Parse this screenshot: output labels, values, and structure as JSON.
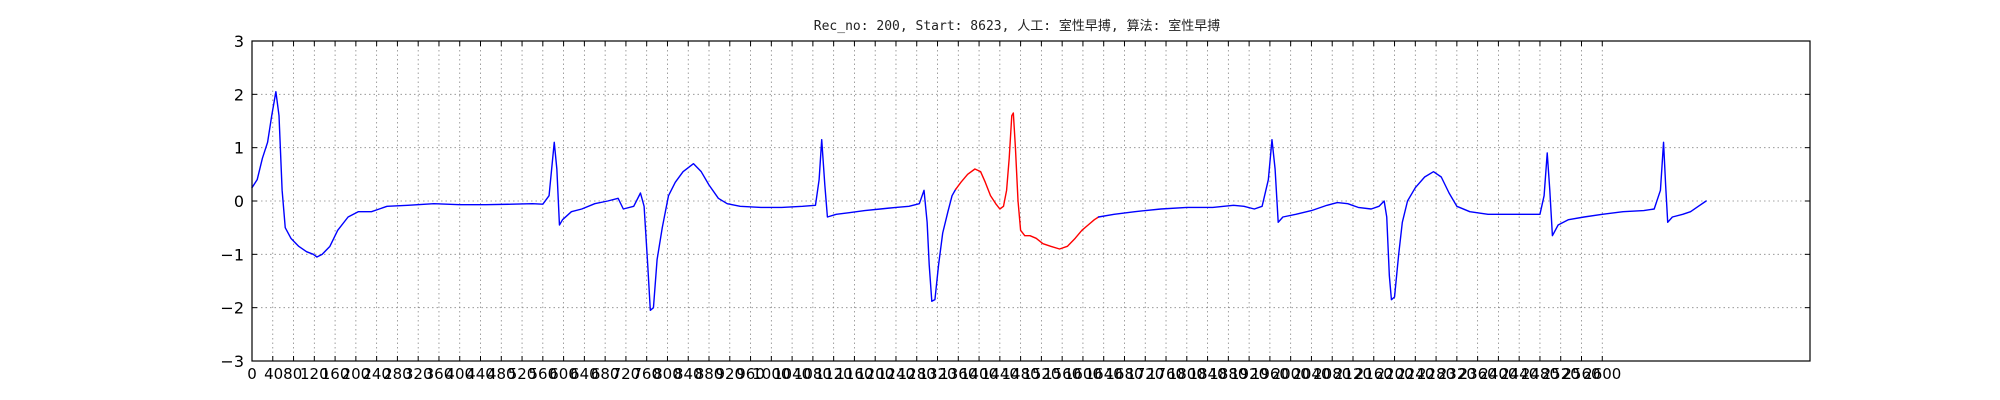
{
  "chart_data": {
    "type": "line",
    "title": "Rec_no: 200, Start: 8623, 人工: 室性早搏, 算法: 室性早搏",
    "xlabel": "",
    "ylabel": "",
    "xlim": [
      0,
      3000
    ],
    "ylim": [
      -3,
      3
    ],
    "grid": true,
    "x_ticks": [
      0,
      40,
      80,
      120,
      160,
      200,
      240,
      280,
      320,
      360,
      400,
      440,
      480,
      520,
      560,
      600,
      640,
      680,
      720,
      760,
      800,
      840,
      880,
      920,
      960,
      1000,
      1040,
      1080,
      1120,
      1160,
      1200,
      1240,
      1280,
      1320,
      1360,
      1400,
      1440,
      1480,
      1520,
      1560,
      1600,
      1640,
      1680,
      1720,
      1760,
      1800,
      1840,
      1880,
      1920,
      1960,
      2000,
      2040,
      2080,
      2120,
      2160,
      2200,
      2240,
      2280,
      2320,
      2360,
      2400,
      2440,
      2480,
      2520,
      2560,
      2600
    ],
    "x_tick_labels_rendered": [
      "0",
      "4080",
      "120",
      "160",
      "200",
      "240",
      "280",
      "320",
      "360",
      "400",
      "440",
      "480",
      "520",
      "560",
      "600",
      "640",
      "680",
      "720",
      "760",
      "800",
      "840",
      "880",
      "920",
      "960",
      "1000",
      "1040",
      "1080",
      "1120",
      "1160",
      "1200",
      "1240",
      "1280",
      "1320",
      "1360",
      "1400",
      "1440",
      "1480",
      "1520",
      "1560",
      "1600",
      "1640",
      "1680",
      "1720",
      "1760",
      "1800",
      "1840",
      "1880",
      "1920",
      "1960",
      "2000",
      "2040",
      "2080",
      "2120",
      "2160",
      "2200",
      "2240",
      "2280",
      "2320",
      "2360",
      "2400",
      "2440",
      "2480",
      "2520",
      "2560",
      "2600"
    ],
    "y_ticks": [
      -3,
      -2,
      -1,
      0,
      1,
      2,
      3
    ],
    "y_tick_labels": [
      "−3",
      "−2",
      "−1",
      "0",
      "1",
      "2",
      "3"
    ],
    "series": [
      {
        "color": "#0000ff",
        "points": [
          [
            0,
            0.25
          ],
          [
            10,
            0.4
          ],
          [
            20,
            0.8
          ],
          [
            30,
            1.1
          ],
          [
            38,
            1.6
          ],
          [
            46,
            2.05
          ],
          [
            52,
            1.6
          ],
          [
            58,
            0.2
          ],
          [
            64,
            -0.5
          ],
          [
            75,
            -0.7
          ],
          [
            90,
            -0.85
          ],
          [
            105,
            -0.95
          ],
          [
            118,
            -1.0
          ],
          [
            125,
            -1.05
          ],
          [
            135,
            -1.0
          ],
          [
            150,
            -0.85
          ],
          [
            165,
            -0.55
          ],
          [
            185,
            -0.3
          ],
          [
            205,
            -0.2
          ],
          [
            230,
            -0.2
          ],
          [
            260,
            -0.1
          ],
          [
            300,
            -0.08
          ],
          [
            350,
            -0.05
          ],
          [
            400,
            -0.07
          ],
          [
            450,
            -0.07
          ],
          [
            500,
            -0.06
          ],
          [
            540,
            -0.05
          ],
          [
            560,
            -0.06
          ],
          [
            572,
            0.1
          ],
          [
            578,
            0.7
          ],
          [
            582,
            1.1
          ],
          [
            587,
            0.6
          ],
          [
            592,
            -0.45
          ],
          [
            598,
            -0.35
          ],
          [
            615,
            -0.2
          ],
          [
            635,
            -0.15
          ],
          [
            660,
            -0.05
          ],
          [
            685,
            0.0
          ],
          [
            705,
            0.05
          ],
          [
            715,
            -0.15
          ],
          [
            735,
            -0.1
          ],
          [
            748,
            0.15
          ],
          [
            755,
            -0.1
          ],
          [
            762,
            -1.2
          ],
          [
            767,
            -2.05
          ],
          [
            773,
            -2.0
          ],
          [
            780,
            -1.1
          ],
          [
            790,
            -0.5
          ],
          [
            802,
            0.1
          ],
          [
            815,
            0.35
          ],
          [
            830,
            0.55
          ],
          [
            850,
            0.7
          ],
          [
            865,
            0.55
          ],
          [
            880,
            0.3
          ],
          [
            898,
            0.05
          ],
          [
            915,
            -0.05
          ],
          [
            940,
            -0.1
          ],
          [
            980,
            -0.12
          ],
          [
            1020,
            -0.12
          ],
          [
            1060,
            -0.1
          ],
          [
            1085,
            -0.08
          ],
          [
            1092,
            0.4
          ],
          [
            1097,
            1.15
          ],
          [
            1103,
            0.3
          ],
          [
            1108,
            -0.3
          ],
          [
            1125,
            -0.25
          ],
          [
            1150,
            -0.22
          ],
          [
            1180,
            -0.18
          ],
          [
            1210,
            -0.15
          ],
          [
            1240,
            -0.12
          ],
          [
            1265,
            -0.1
          ],
          [
            1285,
            -0.05
          ],
          [
            1294,
            0.2
          ],
          [
            1300,
            -0.4
          ],
          [
            1304,
            -1.2
          ],
          [
            1309,
            -1.88
          ],
          [
            1315,
            -1.85
          ],
          [
            1322,
            -1.2
          ],
          [
            1330,
            -0.6
          ],
          [
            1340,
            -0.2
          ],
          [
            1348,
            0.1
          ],
          [
            1355,
            0.22
          ]
        ]
      },
      {
        "color": "#ff0000",
        "points": [
          [
            1355,
            0.22
          ],
          [
            1365,
            0.35
          ],
          [
            1378,
            0.5
          ],
          [
            1392,
            0.6
          ],
          [
            1403,
            0.55
          ],
          [
            1412,
            0.35
          ],
          [
            1422,
            0.1
          ],
          [
            1432,
            -0.05
          ],
          [
            1440,
            -0.15
          ],
          [
            1447,
            -0.1
          ],
          [
            1453,
            0.2
          ],
          [
            1458,
            0.8
          ],
          [
            1463,
            1.6
          ],
          [
            1466,
            1.65
          ],
          [
            1470,
            1.0
          ],
          [
            1475,
            0.0
          ],
          [
            1480,
            -0.55
          ],
          [
            1488,
            -0.65
          ],
          [
            1498,
            -0.65
          ],
          [
            1510,
            -0.7
          ],
          [
            1523,
            -0.8
          ],
          [
            1538,
            -0.85
          ],
          [
            1555,
            -0.9
          ],
          [
            1570,
            -0.85
          ],
          [
            1585,
            -0.7
          ],
          [
            1598,
            -0.55
          ],
          [
            1610,
            -0.45
          ],
          [
            1622,
            -0.35
          ],
          [
            1630,
            -0.3
          ]
        ]
      },
      {
        "color": "#0000ff",
        "points": [
          [
            1630,
            -0.3
          ],
          [
            1660,
            -0.25
          ],
          [
            1700,
            -0.2
          ],
          [
            1750,
            -0.15
          ],
          [
            1800,
            -0.12
          ],
          [
            1850,
            -0.12
          ],
          [
            1890,
            -0.08
          ],
          [
            1910,
            -0.1
          ],
          [
            1930,
            -0.15
          ],
          [
            1945,
            -0.1
          ],
          [
            1957,
            0.4
          ],
          [
            1964,
            1.15
          ],
          [
            1970,
            0.6
          ],
          [
            1976,
            -0.4
          ],
          [
            1985,
            -0.3
          ],
          [
            2010,
            -0.25
          ],
          [
            2040,
            -0.18
          ],
          [
            2070,
            -0.08
          ],
          [
            2090,
            -0.03
          ],
          [
            2110,
            -0.05
          ],
          [
            2130,
            -0.12
          ],
          [
            2155,
            -0.15
          ],
          [
            2170,
            -0.1
          ],
          [
            2180,
            0.0
          ],
          [
            2185,
            -0.3
          ],
          [
            2190,
            -1.4
          ],
          [
            2194,
            -1.85
          ],
          [
            2200,
            -1.8
          ],
          [
            2208,
            -1.0
          ],
          [
            2215,
            -0.4
          ],
          [
            2225,
            0.0
          ],
          [
            2240,
            0.25
          ],
          [
            2258,
            0.45
          ],
          [
            2275,
            0.55
          ],
          [
            2290,
            0.45
          ],
          [
            2305,
            0.15
          ],
          [
            2320,
            -0.1
          ],
          [
            2345,
            -0.2
          ],
          [
            2380,
            -0.25
          ],
          [
            2420,
            -0.25
          ],
          [
            2460,
            -0.25
          ],
          [
            2480,
            -0.25
          ],
          [
            2488,
            0.1
          ],
          [
            2494,
            0.9
          ],
          [
            2499,
            0.2
          ],
          [
            2504,
            -0.65
          ],
          [
            2515,
            -0.45
          ],
          [
            2535,
            -0.35
          ],
          [
            2565,
            -0.3
          ],
          [
            2600,
            -0.25
          ],
          [
            2640,
            -0.2
          ],
          [
            2680,
            -0.18
          ],
          [
            2700,
            -0.15
          ],
          [
            2712,
            0.2
          ],
          [
            2718,
            1.1
          ],
          [
            2722,
            0.3
          ],
          [
            2726,
            -0.4
          ],
          [
            2735,
            -0.3
          ],
          [
            2755,
            -0.25
          ],
          [
            2770,
            -0.2
          ],
          [
            2785,
            -0.1
          ],
          [
            2800,
            0.0
          ]
        ]
      }
    ]
  }
}
